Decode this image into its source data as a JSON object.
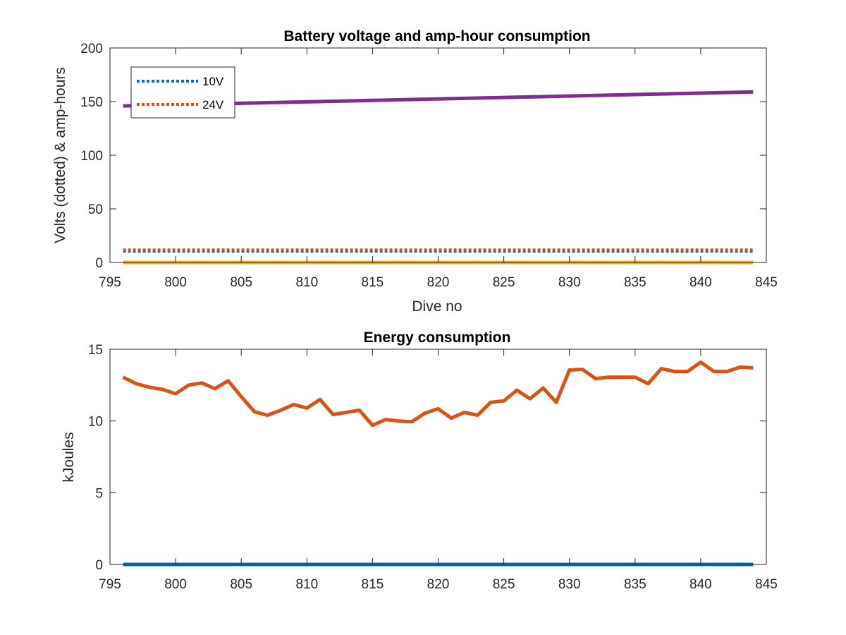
{
  "chart_data": [
    {
      "type": "line",
      "title": "Battery voltage and amp-hour consumption",
      "xlabel": "Dive no",
      "ylabel": "Volts (dotted) & amp-hours",
      "xlim": [
        795,
        845
      ],
      "ylim": [
        0,
        200
      ],
      "xticks": [
        795,
        800,
        805,
        810,
        815,
        820,
        825,
        830,
        835,
        840,
        845
      ],
      "yticks": [
        0,
        50,
        100,
        150,
        200
      ],
      "grid": false,
      "legend_position": "top-left",
      "x": [
        796,
        844
      ],
      "series": [
        {
          "name": "10V",
          "style": "dotted",
          "color": "#0072BD",
          "values": [
            10.5,
            10.5
          ]
        },
        {
          "name": "24V",
          "style": "dotted",
          "color": "#D95319",
          "values": [
            11.8,
            11.8
          ]
        },
        {
          "name": "",
          "style": "solid",
          "color": "#7E2F8E",
          "values": [
            146,
            159
          ]
        },
        {
          "name": "",
          "style": "solid",
          "color": "#EDB120",
          "values": [
            0,
            0
          ]
        }
      ]
    },
    {
      "type": "line",
      "title": "Energy consumption",
      "xlabel": "",
      "ylabel": "kJoules",
      "xlim": [
        795,
        845
      ],
      "ylim": [
        0,
        15
      ],
      "xticks": [
        795,
        800,
        805,
        810,
        815,
        820,
        825,
        830,
        835,
        840,
        845
      ],
      "yticks": [
        0,
        5,
        10,
        15
      ],
      "grid": false,
      "x": [
        796,
        797,
        798,
        799,
        800,
        801,
        802,
        803,
        804,
        805,
        806,
        807,
        808,
        809,
        810,
        811,
        812,
        813,
        814,
        815,
        816,
        817,
        818,
        819,
        820,
        821,
        822,
        823,
        824,
        825,
        826,
        827,
        828,
        829,
        830,
        831,
        832,
        833,
        834,
        835,
        836,
        837,
        838,
        839,
        840,
        841,
        842,
        843,
        844
      ],
      "series": [
        {
          "name": "",
          "style": "solid",
          "color": "#D95319",
          "values": [
            13.05,
            12.6,
            12.35,
            12.2,
            11.9,
            12.5,
            12.65,
            12.25,
            12.8,
            11.7,
            10.65,
            10.4,
            10.75,
            11.15,
            10.9,
            11.5,
            10.45,
            10.6,
            10.75,
            9.7,
            10.1,
            10.0,
            9.95,
            10.55,
            10.85,
            10.2,
            10.6,
            10.4,
            11.3,
            11.4,
            12.15,
            11.55,
            12.3,
            11.3,
            13.55,
            13.6,
            12.95,
            13.05,
            13.05,
            13.05,
            12.6,
            13.65,
            13.45,
            13.45,
            14.1,
            13.45,
            13.45,
            13.75,
            13.7
          ]
        },
        {
          "name": "",
          "style": "solid",
          "color": "#0072BD",
          "values": [
            0,
            0,
            0,
            0,
            0,
            0,
            0,
            0,
            0,
            0,
            0,
            0,
            0,
            0,
            0,
            0,
            0,
            0,
            0,
            0,
            0,
            0,
            0,
            0,
            0,
            0,
            0,
            0,
            0,
            0,
            0,
            0,
            0,
            0,
            0,
            0,
            0,
            0,
            0,
            0,
            0,
            0,
            0,
            0,
            0,
            0,
            0,
            0,
            0
          ]
        }
      ]
    }
  ]
}
